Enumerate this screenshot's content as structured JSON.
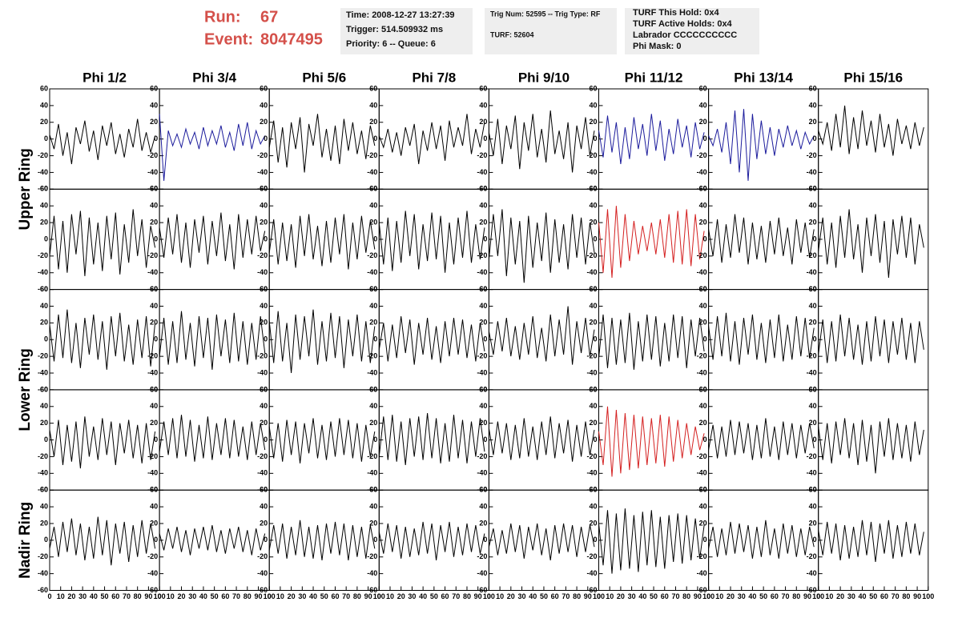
{
  "header": {
    "run_label": "Run:",
    "run": "67",
    "event_label": "Event:",
    "event": "8047495",
    "box1": [
      "Time: 2008-12-27 13:27:39",
      "Trigger: 514.509932 ms",
      "Priority: 6 -- Queue: 6"
    ],
    "box2": [
      "Trig Num: 52595 -- Trig Type: RF",
      "TURF: 52604"
    ],
    "box3": [
      "TURF This Hold: 0x4",
      "TURF Active Holds: 0x4",
      "Labrador CCCCCCCCCC",
      "Phi Mask: 0"
    ]
  },
  "chart_data": {
    "type": "line",
    "columns": [
      "Phi 1/2",
      "Phi 3/4",
      "Phi 5/6",
      "Phi 7/8",
      "Phi 9/10",
      "Phi 11/12",
      "Phi 13/14",
      "Phi 15/16"
    ],
    "rows": [
      "Upper Ring",
      "Lower Ring",
      "Nadir Ring"
    ],
    "xlim": [
      0,
      100
    ],
    "xticks": [
      0,
      10,
      20,
      30,
      40,
      50,
      60,
      70,
      80,
      90,
      100
    ],
    "ylim": [
      -60,
      60
    ],
    "yticks": [
      -60,
      -40,
      -20,
      0,
      20,
      40,
      60
    ],
    "x": [
      0,
      4,
      8,
      12,
      16,
      20,
      24,
      28,
      32,
      36,
      40,
      44,
      48,
      52,
      56,
      60,
      64,
      68,
      72,
      76,
      80,
      84,
      88,
      92,
      96
    ],
    "series": [
      {
        "color": "#000000",
        "values": [
          5,
          -12,
          18,
          -20,
          8,
          -30,
          14,
          -6,
          22,
          -15,
          10,
          -25,
          16,
          -8,
          20,
          -18,
          6,
          -22,
          12,
          -10,
          24,
          -14,
          8,
          -16,
          4
        ]
      },
      {
        "color": "#1c1c9c",
        "values": [
          30,
          -50,
          10,
          -8,
          6,
          -10,
          12,
          -6,
          8,
          -12,
          14,
          -8,
          10,
          -6,
          16,
          -10,
          8,
          -14,
          18,
          -8,
          20,
          -12,
          10,
          -6,
          4
        ]
      },
      {
        "color": "#000000",
        "values": [
          -10,
          22,
          -28,
          14,
          -34,
          20,
          -12,
          26,
          -40,
          18,
          -8,
          30,
          -22,
          12,
          -26,
          16,
          -30,
          24,
          -14,
          20,
          -18,
          10,
          -24,
          16,
          -8
        ]
      },
      {
        "color": "#000000",
        "values": [
          4,
          -10,
          12,
          -16,
          8,
          -20,
          14,
          -8,
          18,
          -30,
          10,
          -14,
          20,
          -12,
          16,
          -26,
          22,
          -10,
          14,
          -8,
          30,
          -18,
          12,
          -10,
          20
        ]
      },
      {
        "color": "#000000",
        "values": [
          8,
          -20,
          24,
          -30,
          16,
          -12,
          28,
          -36,
          20,
          -14,
          30,
          -22,
          12,
          -28,
          34,
          -18,
          10,
          -24,
          20,
          -40,
          16,
          -12,
          26,
          -20,
          10
        ]
      },
      {
        "color": "#1c1c9c",
        "values": [
          10,
          -22,
          28,
          -16,
          20,
          -30,
          14,
          -24,
          26,
          -12,
          18,
          -20,
          30,
          -14,
          22,
          -26,
          12,
          -18,
          24,
          -10,
          16,
          -22,
          20,
          -12,
          8
        ]
      },
      {
        "color": "#1c1c9c",
        "values": [
          4,
          -8,
          12,
          -16,
          20,
          -30,
          34,
          -40,
          36,
          -50,
          30,
          -24,
          22,
          -18,
          14,
          -20,
          12,
          -10,
          16,
          -8,
          10,
          -12,
          8,
          -6,
          4
        ]
      },
      {
        "color": "#000000",
        "values": [
          10,
          -6,
          20,
          -14,
          30,
          -10,
          40,
          -18,
          26,
          -12,
          34,
          -8,
          22,
          -16,
          30,
          -10,
          18,
          -20,
          24,
          -6,
          16,
          -12,
          20,
          -8,
          14
        ]
      },
      {
        "color": "#000000",
        "values": [
          -20,
          28,
          -36,
          22,
          -40,
          30,
          -18,
          34,
          -44,
          26,
          -30,
          20,
          -38,
          28,
          -24,
          32,
          -42,
          18,
          -28,
          36,
          -20,
          24,
          -34,
          16,
          -10
        ]
      },
      {
        "color": "#000000",
        "values": [
          14,
          -22,
          26,
          -18,
          30,
          -28,
          20,
          -34,
          24,
          -16,
          28,
          -30,
          22,
          -20,
          32,
          -26,
          18,
          -36,
          30,
          -22,
          24,
          -18,
          28,
          -14,
          10
        ]
      },
      {
        "color": "#000000",
        "values": [
          -16,
          24,
          -30,
          20,
          -26,
          18,
          -34,
          28,
          -20,
          30,
          -24,
          16,
          -32,
          22,
          -28,
          26,
          -18,
          30,
          -36,
          20,
          -24,
          28,
          -16,
          22,
          -12
        ]
      },
      {
        "color": "#000000",
        "values": [
          20,
          -30,
          26,
          -38,
          22,
          -28,
          34,
          -20,
          30,
          -36,
          18,
          -26,
          32,
          -24,
          28,
          -40,
          20,
          -30,
          26,
          -22,
          34,
          -28,
          18,
          -24,
          14
        ]
      },
      {
        "color": "#000000",
        "values": [
          -24,
          30,
          -20,
          36,
          -44,
          26,
          -30,
          22,
          -52,
          28,
          -34,
          20,
          -26,
          32,
          -40,
          24,
          -28,
          18,
          -36,
          30,
          -22,
          26,
          -30,
          20,
          -16
        ]
      },
      {
        "color": "#d42020",
        "values": [
          20,
          -40,
          36,
          -46,
          40,
          -34,
          30,
          -26,
          22,
          -18,
          16,
          -14,
          20,
          -18,
          24,
          -22,
          30,
          -28,
          34,
          -30,
          36,
          -32,
          30,
          -24,
          10
        ]
      },
      {
        "color": "#000000",
        "values": [
          12,
          -20,
          24,
          -28,
          18,
          -22,
          30,
          -16,
          26,
          -30,
          20,
          -24,
          16,
          -28,
          22,
          -18,
          26,
          -20,
          14,
          -30,
          24,
          -16,
          20,
          -22,
          12
        ]
      },
      {
        "color": "#000000",
        "values": [
          -14,
          26,
          -30,
          20,
          -34,
          28,
          -22,
          36,
          -24,
          18,
          -40,
          26,
          -20,
          30,
          -28,
          22,
          -46,
          24,
          -18,
          28,
          -22,
          26,
          -30,
          18,
          -10
        ]
      },
      {
        "color": "#000000",
        "values": [
          18,
          -26,
          30,
          -22,
          36,
          -28,
          20,
          -34,
          26,
          -18,
          30,
          -24,
          22,
          -36,
          28,
          -20,
          32,
          -26,
          18,
          -30,
          24,
          -22,
          28,
          -32,
          20
        ]
      },
      {
        "color": "#000000",
        "values": [
          -20,
          26,
          -30,
          22,
          -28,
          34,
          -24,
          20,
          -32,
          28,
          -22,
          26,
          -36,
          30,
          -20,
          24,
          -28,
          32,
          -26,
          22,
          -30,
          20,
          -24,
          28,
          -16
        ]
      },
      {
        "color": "#000000",
        "values": [
          22,
          -28,
          34,
          -26,
          20,
          -40,
          30,
          -24,
          28,
          -20,
          36,
          -30,
          22,
          -26,
          32,
          -22,
          28,
          -34,
          24,
          -20,
          30,
          -26,
          22,
          -28,
          16
        ]
      },
      {
        "color": "#000000",
        "values": [
          -12,
          20,
          -26,
          18,
          -22,
          28,
          -16,
          24,
          -30,
          20,
          -18,
          26,
          -24,
          16,
          -28,
          22,
          -20,
          26,
          -18,
          24,
          -22,
          18,
          -26,
          20,
          -14
        ]
      },
      {
        "color": "#000000",
        "values": [
          10,
          -18,
          22,
          -14,
          26,
          -20,
          16,
          -24,
          20,
          -18,
          28,
          -22,
          14,
          -26,
          30,
          -20,
          24,
          -18,
          40,
          -30,
          22,
          -16,
          26,
          -20,
          12
        ]
      },
      {
        "color": "#000000",
        "values": [
          -22,
          30,
          -34,
          26,
          -30,
          24,
          -28,
          32,
          -36,
          22,
          -26,
          30,
          -24,
          28,
          -32,
          20,
          -26,
          30,
          -22,
          28,
          -34,
          24,
          -20,
          26,
          -14
        ]
      },
      {
        "color": "#000000",
        "values": [
          16,
          -24,
          28,
          -20,
          32,
          -26,
          22,
          -30,
          26,
          -18,
          30,
          -24,
          20,
          -28,
          24,
          -22,
          30,
          -26,
          18,
          -24,
          28,
          -20,
          26,
          -22,
          14
        ]
      },
      {
        "color": "#000000",
        "values": [
          -18,
          24,
          -28,
          22,
          -26,
          30,
          -20,
          26,
          -24,
          18,
          -30,
          22,
          -26,
          28,
          -20,
          24,
          -28,
          22,
          -18,
          26,
          -24,
          20,
          -28,
          22,
          -12
        ]
      },
      {
        "color": "#000000",
        "values": [
          12,
          -20,
          24,
          -30,
          18,
          -26,
          22,
          -34,
          28,
          -20,
          16,
          -24,
          26,
          -18,
          22,
          -30,
          20,
          -16,
          24,
          -22,
          18,
          -28,
          20,
          -24,
          10
        ]
      },
      {
        "color": "#000000",
        "values": [
          -14,
          22,
          -18,
          26,
          -22,
          30,
          -20,
          24,
          -26,
          18,
          -22,
          28,
          -24,
          20,
          -18,
          26,
          -22,
          24,
          -20,
          16,
          -24,
          22,
          -18,
          20,
          -12
        ]
      },
      {
        "color": "#000000",
        "values": [
          16,
          -22,
          20,
          -26,
          24,
          -18,
          22,
          -28,
          20,
          -16,
          26,
          -22,
          18,
          -24,
          22,
          -20,
          26,
          -18,
          24,
          -22,
          20,
          -26,
          18,
          -20,
          10
        ]
      },
      {
        "color": "#000000",
        "values": [
          -20,
          28,
          -24,
          30,
          -26,
          22,
          -30,
          26,
          -20,
          28,
          -24,
          32,
          -22,
          26,
          -28,
          20,
          -26,
          30,
          -22,
          24,
          -28,
          22,
          -20,
          26,
          -14
        ]
      },
      {
        "color": "#000000",
        "values": [
          14,
          -18,
          22,
          -16,
          20,
          -24,
          18,
          -22,
          26,
          -20,
          16,
          -24,
          22,
          -18,
          28,
          -22,
          20,
          -16,
          24,
          -26,
          18,
          -20,
          22,
          -18,
          12
        ]
      },
      {
        "color": "#d42020",
        "values": [
          10,
          -30,
          40,
          -44,
          36,
          -40,
          32,
          -36,
          30,
          -34,
          28,
          -30,
          26,
          -28,
          30,
          -32,
          28,
          -26,
          24,
          -22,
          20,
          -18,
          16,
          -12,
          8
        ]
      },
      {
        "color": "#000000",
        "values": [
          -12,
          18,
          -22,
          16,
          -20,
          24,
          -18,
          22,
          -16,
          20,
          -24,
          18,
          -22,
          26,
          -20,
          16,
          -24,
          22,
          -18,
          20,
          -22,
          18,
          -16,
          20,
          -10
        ]
      },
      {
        "color": "#000000",
        "values": [
          16,
          -24,
          20,
          -28,
          22,
          -18,
          26,
          -22,
          20,
          -30,
          24,
          -26,
          18,
          -40,
          22,
          -20,
          26,
          -24,
          20,
          -22,
          18,
          -26,
          22,
          -18,
          12
        ]
      },
      {
        "color": "#000000",
        "values": [
          -10,
          16,
          -20,
          22,
          -14,
          26,
          -18,
          20,
          -24,
          16,
          -22,
          28,
          -18,
          24,
          -30,
          20,
          -16,
          22,
          -26,
          18,
          -20,
          24,
          -16,
          20,
          -10
        ]
      },
      {
        "color": "#000000",
        "values": [
          8,
          -12,
          14,
          -10,
          16,
          -14,
          12,
          -18,
          14,
          -10,
          16,
          -12,
          18,
          -14,
          12,
          -16,
          14,
          -10,
          16,
          -14,
          12,
          -18,
          14,
          -12,
          8
        ]
      },
      {
        "color": "#000000",
        "values": [
          -12,
          18,
          -16,
          20,
          -22,
          16,
          -18,
          24,
          -20,
          16,
          -22,
          18,
          -24,
          20,
          -16,
          22,
          -18,
          20,
          -24,
          18,
          -20,
          16,
          -22,
          18,
          -10
        ]
      },
      {
        "color": "#000000",
        "values": [
          10,
          -16,
          20,
          -14,
          18,
          -22,
          16,
          -20,
          14,
          -18,
          22,
          -16,
          20,
          -24,
          18,
          -14,
          22,
          -20,
          16,
          -18,
          20,
          -14,
          18,
          -16,
          8
        ]
      },
      {
        "color": "#000000",
        "values": [
          -8,
          14,
          -18,
          12,
          -16,
          20,
          -14,
          18,
          -22,
          16,
          -12,
          20,
          -18,
          14,
          -24,
          18,
          -16,
          20,
          -14,
          18,
          -20,
          16,
          -14,
          18,
          -8
        ]
      },
      {
        "color": "#000000",
        "values": [
          20,
          -30,
          36,
          -40,
          32,
          -36,
          38,
          -34,
          30,
          -38,
          34,
          -30,
          36,
          -32,
          28,
          -34,
          30,
          -26,
          32,
          -28,
          30,
          -24,
          26,
          -22,
          18
        ]
      },
      {
        "color": "#000000",
        "values": [
          -10,
          16,
          -20,
          14,
          -18,
          22,
          -16,
          20,
          -14,
          18,
          -22,
          16,
          -20,
          24,
          -18,
          14,
          -22,
          20,
          -16,
          18,
          -20,
          14,
          -18,
          16,
          -8
        ]
      },
      {
        "color": "#000000",
        "values": [
          12,
          -18,
          22,
          -16,
          20,
          -24,
          18,
          -22,
          16,
          -20,
          24,
          -18,
          22,
          -26,
          20,
          -16,
          24,
          -22,
          18,
          -20,
          22,
          -16,
          20,
          -18,
          10
        ]
      }
    ]
  }
}
